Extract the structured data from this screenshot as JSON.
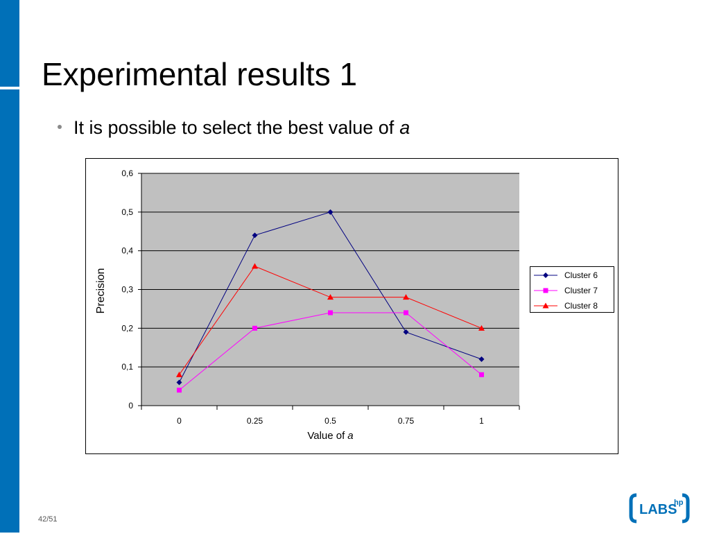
{
  "slide": {
    "title": "Experimental results 1",
    "bullet": [
      "It is possible to select the best value of",
      "a"
    ],
    "page": "42/51",
    "logo": {
      "text": "LABS",
      "sup": "hp"
    }
  },
  "chart_data": {
    "type": "line",
    "xlabel": [
      "Value of",
      "a"
    ],
    "ylabel": "Precision",
    "categories": [
      "0",
      "0.25",
      "0.5",
      "0.75",
      "1"
    ],
    "series": [
      {
        "name": "Cluster 6",
        "color": "#000080",
        "marker": "diamond",
        "values": [
          0.06,
          0.44,
          0.5,
          0.19,
          0.12
        ]
      },
      {
        "name": "Cluster 7",
        "color": "#ff00ff",
        "marker": "square",
        "values": [
          0.04,
          0.2,
          0.24,
          0.24,
          0.08
        ]
      },
      {
        "name": "Cluster 8",
        "color": "#ff0000",
        "marker": "triangle",
        "values": [
          0.08,
          0.36,
          0.28,
          0.28,
          0.2
        ]
      }
    ],
    "ylim": [
      0,
      0.6
    ],
    "yticks": [
      0,
      {
        "value": 0.1,
        "label": "0,1"
      },
      {
        "value": 0.2,
        "label": "0,2"
      },
      {
        "value": 0.3,
        "label": "0,3"
      },
      {
        "value": 0.4,
        "label": "0,4"
      },
      {
        "value": 0.5,
        "label": "0,5"
      },
      {
        "value": 0.6,
        "label": "0,6"
      }
    ],
    "grid": true,
    "legend": "right",
    "plot_background": "#c0c0c0"
  }
}
